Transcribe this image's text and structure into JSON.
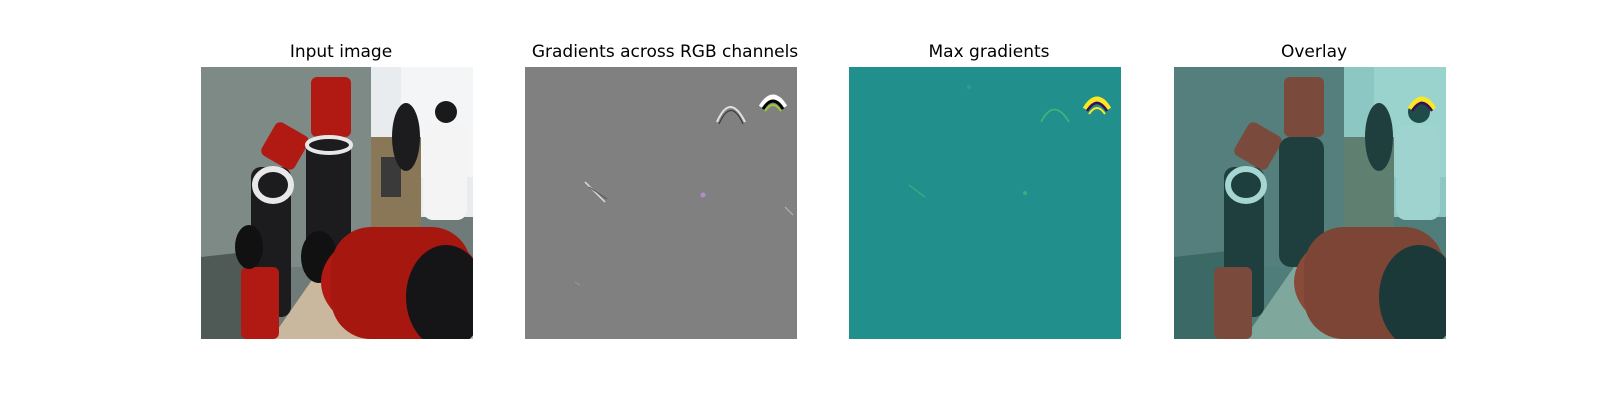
{
  "figure": {
    "panels": [
      {
        "title": "Input image",
        "kind": "photo"
      },
      {
        "title": "Gradients across RGB channels",
        "kind": "rgb-gradient"
      },
      {
        "title": "Max gradients",
        "kind": "max-gradient"
      },
      {
        "title": "Overlay",
        "kind": "overlay"
      }
    ]
  },
  "colors": {
    "gradient_bg": "#808080",
    "max_gradient_bg": "#21908d",
    "highlight_yellow": "#fde725",
    "highlight_dark": "#3b0f52",
    "robot_red": "#b01a12",
    "robot_black": "#1c1c1f",
    "floor": "#c9b89e",
    "overlay_tint": "#2a8a86"
  }
}
